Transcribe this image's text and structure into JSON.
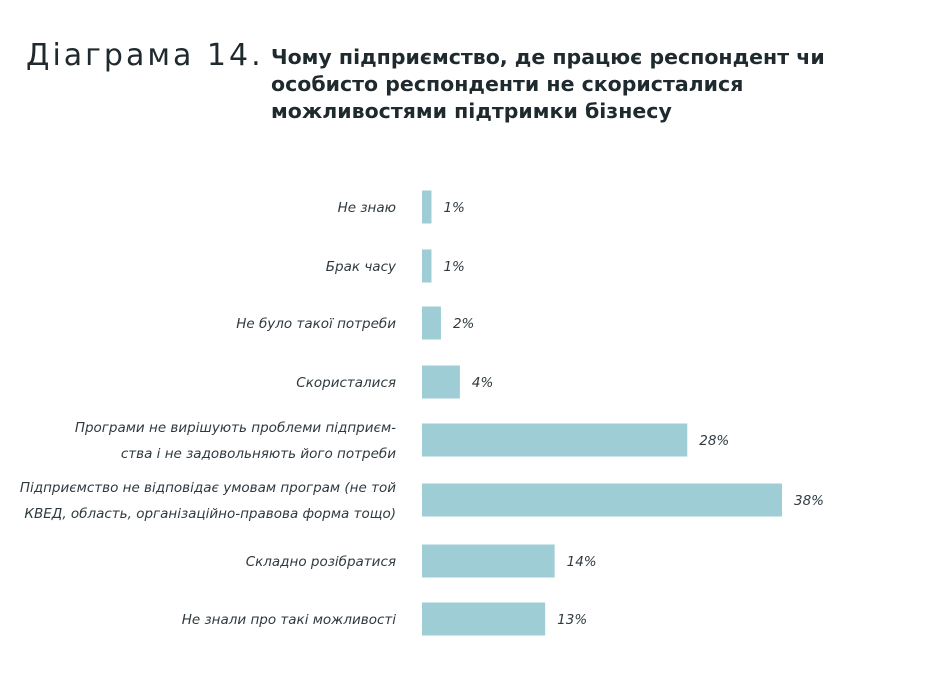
{
  "header": {
    "diagram_number": "Діаграма 14.",
    "title": "Чому підприємство, де працює респондент чи особисто респонденти не скористалися можливостями підтримки бізнесу"
  },
  "chart_data": {
    "type": "bar",
    "orientation": "horizontal",
    "title": "Чому підприємство, де працює респондент чи особисто респонденти не скористалися можливостями підтримки бізнесу",
    "bar_color": "#9ecdd6",
    "value_suffix": "%",
    "xlim": [
      0,
      38
    ],
    "grid": false,
    "categories": [
      [
        "Не знаю"
      ],
      [
        "Брак часу"
      ],
      [
        "Не було такої потреби"
      ],
      [
        "Скористалися"
      ],
      [
        "Програми не вирішують проблеми  підприєм-",
        "ства і не задовольняють його потреби"
      ],
      [
        "Підприємство не відповідає умовам програм (не той",
        "КВЕД, область, організаційно-правова форма тощо)"
      ],
      [
        "Складно розібратися"
      ],
      [
        "Не знали про такі можливості"
      ]
    ],
    "values": [
      1,
      1,
      2,
      4,
      28,
      38,
      14,
      13
    ],
    "value_labels": [
      "1%",
      "1%",
      "2%",
      "4%",
      "28%",
      "38%",
      "14%",
      "13%"
    ]
  }
}
